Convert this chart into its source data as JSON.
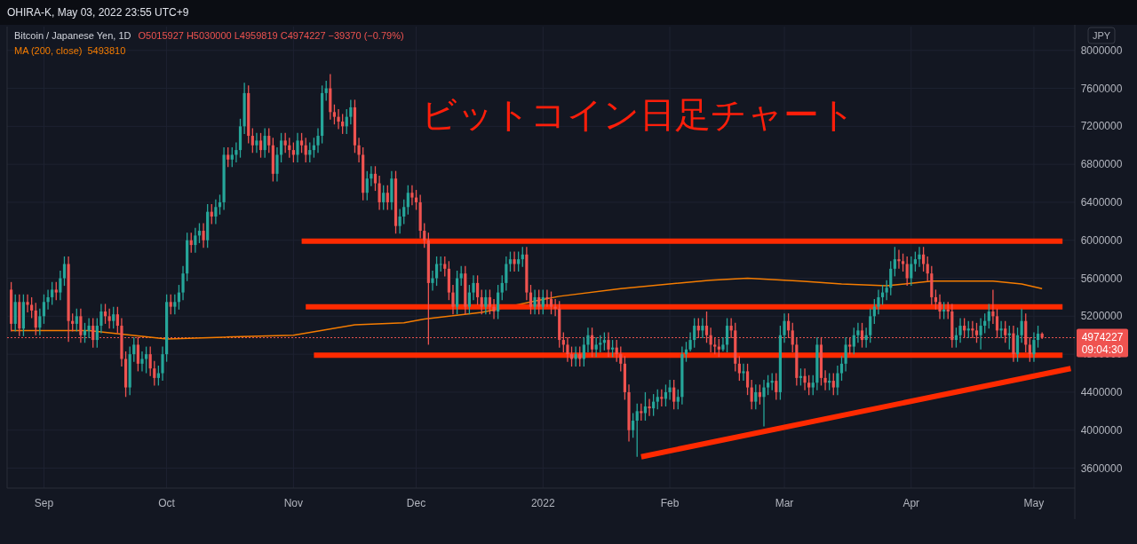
{
  "chart_data": {
    "type": "candlestick",
    "title": "Bitcoin / Japanese Yen, 1D",
    "ylabel": "JPY",
    "annotations": [
      "OHIRA-K, May 03, 2022 23:55 UTC+9",
      "O5015927 H5030000 L4959819 C4974227 −39370 (−0.79%)",
      "ビットコイン日足チャート",
      "09:04:30",
      "5493810"
    ],
    "xlim": [
      "2021-08-23",
      "2022-05-11"
    ],
    "xticks": [
      {
        "value": "2021-09-01",
        "label": "Sep"
      },
      {
        "value": "2021-10-01",
        "label": "Oct"
      },
      {
        "value": "2021-11-01",
        "label": "Nov"
      },
      {
        "value": "2021-12-01",
        "label": "Dec"
      },
      {
        "value": "2022-01-01",
        "label": "2022"
      },
      {
        "value": "2022-02-01",
        "label": "Feb"
      },
      {
        "value": "2022-03-01",
        "label": "Mar"
      },
      {
        "value": "2022-04-01",
        "label": "Apr"
      },
      {
        "value": "2022-05-01",
        "label": "May"
      }
    ],
    "ylim": [
      3390000,
      8250000
    ],
    "yticks": [
      3600000,
      4000000,
      4400000,
      4800000,
      5200000,
      5600000,
      6000000,
      6400000,
      6800000,
      7200000,
      7600000,
      8000000
    ],
    "grid": true,
    "legend": "top left",
    "ref_lines": [
      {
        "axis": "y",
        "value": 4974227,
        "label": "4974227",
        "color": "#ef5350",
        "line_style": "dotted"
      }
    ],
    "x": [
      "2021-08-24",
      "2021-08-25",
      "2021-08-26",
      "2021-08-27",
      "2021-08-28",
      "2021-08-29",
      "2021-08-30",
      "2021-08-31",
      "2021-09-01",
      "2021-09-02",
      "2021-09-03",
      "2021-09-04",
      "2021-09-05",
      "2021-09-06",
      "2021-09-07",
      "2021-09-08",
      "2021-09-09",
      "2021-09-10",
      "2021-09-11",
      "2021-09-12",
      "2021-09-13",
      "2021-09-14",
      "2021-09-15",
      "2021-09-16",
      "2021-09-17",
      "2021-09-18",
      "2021-09-19",
      "2021-09-20",
      "2021-09-21",
      "2021-09-22",
      "2021-09-23",
      "2021-09-24",
      "2021-09-25",
      "2021-09-26",
      "2021-09-27",
      "2021-09-28",
      "2021-09-29",
      "2021-09-30",
      "2021-10-01",
      "2021-10-02",
      "2021-10-03",
      "2021-10-04",
      "2021-10-05",
      "2021-10-06",
      "2021-10-07",
      "2021-10-08",
      "2021-10-09",
      "2021-10-10",
      "2021-10-11",
      "2021-10-12",
      "2021-10-13",
      "2021-10-14",
      "2021-10-15",
      "2021-10-16",
      "2021-10-17",
      "2021-10-18",
      "2021-10-19",
      "2021-10-20",
      "2021-10-21",
      "2021-10-22",
      "2021-10-23",
      "2021-10-24",
      "2021-10-25",
      "2021-10-26",
      "2021-10-27",
      "2021-10-28",
      "2021-10-29",
      "2021-10-30",
      "2021-10-31",
      "2021-11-01",
      "2021-11-02",
      "2021-11-03",
      "2021-11-04",
      "2021-11-05",
      "2021-11-06",
      "2021-11-07",
      "2021-11-08",
      "2021-11-09",
      "2021-11-10",
      "2021-11-11",
      "2021-11-12",
      "2021-11-13",
      "2021-11-14",
      "2021-11-15",
      "2021-11-16",
      "2021-11-17",
      "2021-11-18",
      "2021-11-19",
      "2021-11-20",
      "2021-11-21",
      "2021-11-22",
      "2021-11-23",
      "2021-11-24",
      "2021-11-25",
      "2021-11-26",
      "2021-11-27",
      "2021-11-28",
      "2021-11-29",
      "2021-11-30",
      "2021-12-01",
      "2021-12-02",
      "2021-12-03",
      "2021-12-04",
      "2021-12-05",
      "2021-12-06",
      "2021-12-07",
      "2021-12-08",
      "2021-12-09",
      "2021-12-10",
      "2021-12-11",
      "2021-12-12",
      "2021-12-13",
      "2021-12-14",
      "2021-12-15",
      "2021-12-16",
      "2021-12-17",
      "2021-12-18",
      "2021-12-19",
      "2021-12-20",
      "2021-12-21",
      "2021-12-22",
      "2021-12-23",
      "2021-12-24",
      "2021-12-25",
      "2021-12-26",
      "2021-12-27",
      "2021-12-28",
      "2021-12-29",
      "2021-12-30",
      "2021-12-31",
      "2022-01-01",
      "2022-01-02",
      "2022-01-03",
      "2022-01-04",
      "2022-01-05",
      "2022-01-06",
      "2022-01-07",
      "2022-01-08",
      "2022-01-09",
      "2022-01-10",
      "2022-01-11",
      "2022-01-12",
      "2022-01-13",
      "2022-01-14",
      "2022-01-15",
      "2022-01-16",
      "2022-01-17",
      "2022-01-18",
      "2022-01-19",
      "2022-01-20",
      "2022-01-21",
      "2022-01-22",
      "2022-01-23",
      "2022-01-24",
      "2022-01-25",
      "2022-01-26",
      "2022-01-27",
      "2022-01-28",
      "2022-01-29",
      "2022-01-30",
      "2022-01-31",
      "2022-02-01",
      "2022-02-02",
      "2022-02-03",
      "2022-02-04",
      "2022-02-05",
      "2022-02-06",
      "2022-02-07",
      "2022-02-08",
      "2022-02-09",
      "2022-02-10",
      "2022-02-11",
      "2022-02-12",
      "2022-02-13",
      "2022-02-14",
      "2022-02-15",
      "2022-02-16",
      "2022-02-17",
      "2022-02-18",
      "2022-02-19",
      "2022-02-20",
      "2022-02-21",
      "2022-02-22",
      "2022-02-23",
      "2022-02-24",
      "2022-02-25",
      "2022-02-26",
      "2022-02-27",
      "2022-02-28",
      "2022-03-01",
      "2022-03-02",
      "2022-03-03",
      "2022-03-04",
      "2022-03-05",
      "2022-03-06",
      "2022-03-07",
      "2022-03-08",
      "2022-03-09",
      "2022-03-10",
      "2022-03-11",
      "2022-03-12",
      "2022-03-13",
      "2022-03-14",
      "2022-03-15",
      "2022-03-16",
      "2022-03-17",
      "2022-03-18",
      "2022-03-19",
      "2022-03-20",
      "2022-03-21",
      "2022-03-22",
      "2022-03-23",
      "2022-03-24",
      "2022-03-25",
      "2022-03-26",
      "2022-03-27",
      "2022-03-28",
      "2022-03-29",
      "2022-03-30",
      "2022-03-31",
      "2022-04-01",
      "2022-04-02",
      "2022-04-03",
      "2022-04-04",
      "2022-04-05",
      "2022-04-06",
      "2022-04-07",
      "2022-04-08",
      "2022-04-09",
      "2022-04-10",
      "2022-04-11",
      "2022-04-12",
      "2022-04-13",
      "2022-04-14",
      "2022-04-15",
      "2022-04-16",
      "2022-04-17",
      "2022-04-18",
      "2022-04-19",
      "2022-04-20",
      "2022-04-21",
      "2022-04-22",
      "2022-04-23",
      "2022-04-24",
      "2022-04-25",
      "2022-04-26",
      "2022-04-27",
      "2022-04-28",
      "2022-04-29",
      "2022-04-30",
      "2022-05-01",
      "2022-05-02",
      "2022-05-03"
    ],
    "ohlc": [
      [
        5480000,
        5560000,
        5040000,
        5120000
      ],
      [
        5120000,
        5430000,
        5040000,
        5350000
      ],
      [
        5350000,
        5430000,
        4990000,
        5070000
      ],
      [
        5070000,
        5430000,
        4990000,
        5350000
      ],
      [
        5350000,
        5430000,
        5240000,
        5320000
      ],
      [
        5320000,
        5400000,
        5180000,
        5260000
      ],
      [
        5260000,
        5340000,
        5000000,
        5080000
      ],
      [
        5080000,
        5280000,
        5000000,
        5200000
      ],
      [
        5200000,
        5430000,
        5120000,
        5350000
      ],
      [
        5350000,
        5480000,
        5270000,
        5400000
      ],
      [
        5400000,
        5560000,
        5320000,
        5480000
      ],
      [
        5480000,
        5560000,
        5370000,
        5450000
      ],
      [
        5450000,
        5680000,
        5370000,
        5600000
      ],
      [
        5600000,
        5830000,
        5520000,
        5750000
      ],
      [
        5750000,
        5830000,
        4930000,
        5150000
      ],
      [
        5150000,
        5230000,
        5040000,
        5120000
      ],
      [
        5120000,
        5280000,
        5040000,
        5200000
      ],
      [
        5200000,
        5280000,
        4920000,
        5000000
      ],
      [
        5000000,
        5130000,
        4920000,
        5050000
      ],
      [
        5050000,
        5180000,
        4970000,
        5100000
      ],
      [
        5100000,
        5180000,
        4870000,
        4950000
      ],
      [
        4950000,
        5180000,
        4870000,
        5100000
      ],
      [
        5100000,
        5330000,
        5020000,
        5250000
      ],
      [
        5250000,
        5330000,
        5120000,
        5200000
      ],
      [
        5200000,
        5280000,
        5070000,
        5150000
      ],
      [
        5150000,
        5300000,
        5070000,
        5220000
      ],
      [
        5220000,
        5300000,
        5020000,
        5100000
      ],
      [
        5100000,
        5180000,
        4670000,
        4750000
      ],
      [
        4750000,
        4830000,
        4350000,
        4450000
      ],
      [
        4450000,
        4880000,
        4370000,
        4800000
      ],
      [
        4800000,
        4980000,
        4720000,
        4900000
      ],
      [
        4900000,
        4980000,
        4620000,
        4700000
      ],
      [
        4700000,
        4830000,
        4620000,
        4750000
      ],
      [
        4750000,
        4880000,
        4600000,
        4800000
      ],
      [
        4800000,
        4880000,
        4570000,
        4650000
      ],
      [
        4650000,
        4730000,
        4470000,
        4550000
      ],
      [
        4550000,
        4680000,
        4470000,
        4600000
      ],
      [
        4600000,
        4880000,
        4520000,
        4800000
      ],
      [
        4800000,
        5430000,
        4720000,
        5350000
      ],
      [
        5350000,
        5430000,
        5220000,
        5300000
      ],
      [
        5300000,
        5430000,
        5220000,
        5350000
      ],
      [
        5350000,
        5530000,
        5270000,
        5450000
      ],
      [
        5450000,
        5730000,
        5370000,
        5650000
      ],
      [
        5650000,
        6080000,
        5570000,
        6000000
      ],
      [
        6000000,
        6080000,
        5870000,
        5950000
      ],
      [
        5950000,
        6130000,
        5870000,
        6050000
      ],
      [
        6050000,
        6180000,
        5970000,
        6100000
      ],
      [
        6100000,
        6180000,
        5920000,
        6000000
      ],
      [
        6000000,
        6380000,
        5920000,
        6300000
      ],
      [
        6300000,
        6380000,
        6170000,
        6250000
      ],
      [
        6250000,
        6430000,
        6170000,
        6350000
      ],
      [
        6350000,
        6480000,
        6270000,
        6400000
      ],
      [
        6400000,
        6980000,
        6320000,
        6900000
      ],
      [
        6900000,
        6980000,
        6770000,
        6850000
      ],
      [
        6850000,
        6980000,
        6770000,
        6900000
      ],
      [
        6900000,
        7030000,
        6820000,
        6950000
      ],
      [
        6950000,
        7280000,
        6870000,
        7200000
      ],
      [
        7200000,
        7660000,
        7120000,
        7550000
      ],
      [
        7550000,
        7630000,
        7020000,
        7100000
      ],
      [
        7100000,
        7180000,
        6920000,
        7000000
      ],
      [
        7000000,
        7130000,
        6920000,
        7050000
      ],
      [
        7050000,
        7130000,
        6870000,
        6950000
      ],
      [
        6950000,
        7180000,
        6870000,
        7100000
      ],
      [
        7100000,
        7180000,
        6920000,
        7000000
      ],
      [
        7000000,
        7080000,
        6620000,
        6700000
      ],
      [
        6700000,
        6980000,
        6620000,
        6900000
      ],
      [
        6900000,
        7130000,
        6820000,
        7050000
      ],
      [
        7050000,
        7130000,
        6920000,
        7000000
      ],
      [
        7000000,
        7080000,
        6870000,
        6950000
      ],
      [
        6950000,
        7030000,
        6820000,
        6900000
      ],
      [
        6900000,
        7130000,
        6820000,
        7050000
      ],
      [
        7050000,
        7130000,
        6920000,
        7000000
      ],
      [
        7000000,
        7080000,
        6820000,
        6900000
      ],
      [
        6900000,
        7030000,
        6820000,
        6950000
      ],
      [
        6950000,
        7080000,
        6870000,
        7000000
      ],
      [
        7000000,
        7180000,
        6920000,
        7100000
      ],
      [
        7100000,
        7630000,
        7020000,
        7550000
      ],
      [
        7550000,
        7680000,
        7470000,
        7600000
      ],
      [
        7600000,
        7750000,
        7270000,
        7350000
      ],
      [
        7350000,
        7430000,
        7220000,
        7300000
      ],
      [
        7300000,
        7380000,
        7170000,
        7250000
      ],
      [
        7250000,
        7330000,
        7120000,
        7200000
      ],
      [
        7200000,
        7380000,
        7120000,
        7300000
      ],
      [
        7300000,
        7480000,
        7220000,
        7400000
      ],
      [
        7400000,
        7480000,
        6920000,
        7000000
      ],
      [
        7000000,
        7080000,
        6820000,
        6900000
      ],
      [
        6900000,
        6980000,
        6420000,
        6500000
      ],
      [
        6500000,
        6730000,
        6420000,
        6650000
      ],
      [
        6650000,
        6780000,
        6570000,
        6700000
      ],
      [
        6700000,
        6780000,
        6520000,
        6600000
      ],
      [
        6600000,
        6680000,
        6320000,
        6400000
      ],
      [
        6400000,
        6580000,
        6320000,
        6500000
      ],
      [
        6500000,
        6580000,
        6320000,
        6400000
      ],
      [
        6400000,
        6730000,
        6320000,
        6650000
      ],
      [
        6650000,
        6730000,
        6070000,
        6150000
      ],
      [
        6150000,
        6330000,
        6070000,
        6250000
      ],
      [
        6250000,
        6430000,
        6170000,
        6350000
      ],
      [
        6350000,
        6580000,
        6270000,
        6500000
      ],
      [
        6500000,
        6580000,
        6370000,
        6450000
      ],
      [
        6450000,
        6530000,
        6320000,
        6400000
      ],
      [
        6400000,
        6480000,
        6020000,
        6100000
      ],
      [
        6100000,
        6180000,
        5920000,
        6000000
      ],
      [
        6000000,
        6080000,
        4900000,
        5550000
      ],
      [
        5550000,
        5680000,
        5470000,
        5600000
      ],
      [
        5600000,
        5830000,
        5520000,
        5750000
      ],
      [
        5750000,
        5830000,
        5670000,
        5750000
      ],
      [
        5750000,
        5830000,
        5620000,
        5700000
      ],
      [
        5700000,
        5780000,
        5370000,
        5450000
      ],
      [
        5450000,
        5530000,
        5220000,
        5300000
      ],
      [
        5300000,
        5680000,
        5220000,
        5600000
      ],
      [
        5600000,
        5730000,
        5520000,
        5650000
      ],
      [
        5650000,
        5730000,
        5220000,
        5300000
      ],
      [
        5300000,
        5530000,
        5220000,
        5450000
      ],
      [
        5450000,
        5630000,
        5370000,
        5550000
      ],
      [
        5550000,
        5630000,
        5320000,
        5400000
      ],
      [
        5400000,
        5480000,
        5220000,
        5300000
      ],
      [
        5300000,
        5480000,
        5220000,
        5400000
      ],
      [
        5400000,
        5480000,
        5220000,
        5300000
      ],
      [
        5300000,
        5380000,
        5170000,
        5250000
      ],
      [
        5250000,
        5530000,
        5170000,
        5450000
      ],
      [
        5450000,
        5630000,
        5370000,
        5550000
      ],
      [
        5550000,
        5830000,
        5470000,
        5750000
      ],
      [
        5750000,
        5880000,
        5670000,
        5800000
      ],
      [
        5800000,
        5880000,
        5670000,
        5750000
      ],
      [
        5750000,
        5880000,
        5670000,
        5800000
      ],
      [
        5800000,
        5930000,
        5720000,
        5850000
      ],
      [
        5850000,
        5930000,
        5370000,
        5450000
      ],
      [
        5450000,
        5530000,
        5220000,
        5300000
      ],
      [
        5300000,
        5480000,
        5220000,
        5400000
      ],
      [
        5400000,
        5480000,
        5220000,
        5300000
      ],
      [
        5300000,
        5480000,
        5220000,
        5400000
      ],
      [
        5400000,
        5480000,
        5300000,
        5380000
      ],
      [
        5380000,
        5460000,
        5220000,
        5300000
      ],
      [
        5300000,
        5380000,
        5200000,
        5280000
      ],
      [
        5280000,
        5360000,
        4870000,
        4950000
      ],
      [
        4950000,
        5030000,
        4820000,
        4900000
      ],
      [
        4900000,
        4980000,
        4720000,
        4800000
      ],
      [
        4800000,
        4880000,
        4670000,
        4750000
      ],
      [
        4750000,
        4880000,
        4670000,
        4800000
      ],
      [
        4800000,
        4880000,
        4670000,
        4750000
      ],
      [
        4750000,
        4980000,
        4670000,
        4900000
      ],
      [
        4900000,
        5080000,
        4820000,
        5000000
      ],
      [
        5000000,
        5080000,
        4770000,
        4850000
      ],
      [
        4850000,
        4980000,
        4770000,
        4900000
      ],
      [
        4900000,
        5000000,
        4820000,
        4920000
      ],
      [
        4920000,
        5030000,
        4840000,
        4950000
      ],
      [
        4950000,
        5030000,
        4770000,
        4850000
      ],
      [
        4850000,
        4950000,
        4770000,
        4870000
      ],
      [
        4870000,
        4950000,
        4720000,
        4800000
      ],
      [
        4800000,
        4880000,
        4620000,
        4700000
      ],
      [
        4700000,
        4780000,
        4320000,
        4400000
      ],
      [
        4400000,
        4480000,
        3880000,
        4000000
      ],
      [
        4000000,
        4180000,
        3920000,
        4100000
      ],
      [
        4100000,
        4280000,
        3720000,
        4200000
      ],
      [
        4200000,
        4280000,
        4100000,
        4180000
      ],
      [
        4180000,
        4400000,
        4100000,
        4250000
      ],
      [
        4250000,
        4330000,
        4150000,
        4230000
      ],
      [
        4230000,
        4380000,
        4150000,
        4300000
      ],
      [
        4300000,
        4430000,
        4220000,
        4350000
      ],
      [
        4350000,
        4430000,
        4250000,
        4330000
      ],
      [
        4330000,
        4480000,
        4250000,
        4400000
      ],
      [
        4400000,
        4530000,
        4320000,
        4450000
      ],
      [
        4450000,
        4530000,
        4220000,
        4300000
      ],
      [
        4300000,
        4430000,
        4220000,
        4350000
      ],
      [
        4350000,
        4880000,
        4270000,
        4800000
      ],
      [
        4800000,
        4930000,
        4720000,
        4850000
      ],
      [
        4850000,
        5030000,
        4830000,
        4950000
      ],
      [
        4950000,
        5180000,
        4870000,
        5100000
      ],
      [
        5100000,
        5180000,
        4970000,
        5050000
      ],
      [
        5050000,
        5180000,
        4970000,
        5100000
      ],
      [
        5100000,
        5250000,
        4920000,
        5000000
      ],
      [
        5000000,
        5080000,
        4820000,
        4900000
      ],
      [
        4900000,
        4980000,
        4800000,
        4880000
      ],
      [
        4880000,
        4960000,
        4770000,
        4850000
      ],
      [
        4850000,
        4980000,
        4830000,
        4900000
      ],
      [
        4900000,
        5180000,
        4820000,
        5100000
      ],
      [
        5100000,
        5180000,
        4970000,
        5050000
      ],
      [
        5050000,
        5130000,
        4620000,
        4700000
      ],
      [
        4700000,
        4780000,
        4520000,
        4600000
      ],
      [
        4600000,
        4700000,
        4520000,
        4620000
      ],
      [
        4620000,
        4700000,
        4370000,
        4450000
      ],
      [
        4450000,
        4530000,
        4220000,
        4300000
      ],
      [
        4300000,
        4480000,
        4220000,
        4400000
      ],
      [
        4400000,
        4480000,
        4270000,
        4350000
      ],
      [
        4350000,
        4530000,
        4040000,
        4450000
      ],
      [
        4450000,
        4580000,
        4370000,
        4500000
      ],
      [
        4500000,
        4600000,
        4420000,
        4520000
      ],
      [
        4520000,
        4600000,
        4320000,
        4400000
      ],
      [
        4400000,
        5100000,
        4320000,
        5000000
      ],
      [
        5000000,
        5230000,
        4920000,
        5150000
      ],
      [
        5150000,
        5230000,
        4970000,
        5050000
      ],
      [
        5050000,
        5130000,
        4820000,
        4900000
      ],
      [
        4900000,
        4980000,
        4470000,
        4550000
      ],
      [
        4550000,
        4650000,
        4470000,
        4570000
      ],
      [
        4570000,
        4650000,
        4420000,
        4500000
      ],
      [
        4500000,
        4580000,
        4370000,
        4450000
      ],
      [
        4450000,
        4580000,
        4370000,
        4500000
      ],
      [
        4500000,
        4980000,
        4420000,
        4900000
      ],
      [
        4900000,
        4980000,
        4470000,
        4550000
      ],
      [
        4550000,
        4630000,
        4420000,
        4500000
      ],
      [
        4500000,
        4600000,
        4420000,
        4520000
      ],
      [
        4520000,
        4600000,
        4370000,
        4450000
      ],
      [
        4450000,
        4680000,
        4370000,
        4600000
      ],
      [
        4600000,
        4780000,
        4520000,
        4700000
      ],
      [
        4700000,
        4980000,
        4620000,
        4900000
      ],
      [
        4900000,
        4980000,
        4800000,
        4880000
      ],
      [
        4880000,
        5080000,
        4800000,
        5000000
      ],
      [
        5000000,
        5130000,
        4920000,
        5050000
      ],
      [
        5050000,
        5130000,
        4870000,
        4950000
      ],
      [
        4950000,
        5080000,
        4870000,
        5000000
      ],
      [
        5000000,
        5280000,
        4920000,
        5200000
      ],
      [
        5200000,
        5380000,
        5120000,
        5300000
      ],
      [
        5300000,
        5480000,
        5220000,
        5400000
      ],
      [
        5400000,
        5530000,
        5320000,
        5450000
      ],
      [
        5450000,
        5580000,
        5370000,
        5500000
      ],
      [
        5500000,
        5780000,
        5420000,
        5700000
      ],
      [
        5700000,
        5930000,
        5620000,
        5800000
      ],
      [
        5800000,
        5900000,
        5700000,
        5780000
      ],
      [
        5780000,
        5860000,
        5670000,
        5750000
      ],
      [
        5750000,
        5830000,
        5520000,
        5600000
      ],
      [
        5600000,
        5830000,
        5520000,
        5750000
      ],
      [
        5750000,
        5880000,
        5670000,
        5800000
      ],
      [
        5800000,
        5930000,
        5720000,
        5850000
      ],
      [
        5850000,
        5930000,
        5670000,
        5750000
      ],
      [
        5750000,
        5830000,
        5570000,
        5650000
      ],
      [
        5650000,
        5730000,
        5320000,
        5400000
      ],
      [
        5400000,
        5480000,
        5270000,
        5350000
      ],
      [
        5350000,
        5430000,
        5170000,
        5250000
      ],
      [
        5250000,
        5350000,
        5170000,
        5270000
      ],
      [
        5270000,
        5350000,
        5170000,
        5250000
      ],
      [
        5250000,
        5330000,
        4870000,
        4950000
      ],
      [
        4950000,
        5080000,
        4870000,
        5000000
      ],
      [
        5000000,
        5180000,
        4920000,
        5100000
      ],
      [
        5100000,
        5180000,
        4970000,
        5050000
      ],
      [
        5050000,
        5150000,
        4970000,
        5070000
      ],
      [
        5070000,
        5150000,
        4970000,
        5050000
      ],
      [
        5050000,
        5130000,
        4920000,
        5000000
      ],
      [
        5000000,
        5180000,
        4850000,
        5100000
      ],
      [
        5100000,
        5230000,
        5020000,
        5150000
      ],
      [
        5150000,
        5330000,
        5070000,
        5250000
      ],
      [
        5250000,
        5480000,
        5120000,
        5200000
      ],
      [
        5200000,
        5280000,
        4970000,
        5050000
      ],
      [
        5050000,
        5150000,
        4970000,
        5070000
      ],
      [
        5070000,
        5150000,
        4920000,
        5000000
      ],
      [
        5000000,
        5100000,
        4850000,
        5020000
      ],
      [
        5020000,
        5100000,
        4720000,
        4800000
      ],
      [
        4800000,
        5080000,
        4720000,
        5000000
      ],
      [
        5000000,
        5280000,
        4920000,
        5150000
      ],
      [
        5150000,
        5230000,
        4820000,
        4900000
      ],
      [
        4900000,
        4980000,
        4720000,
        4800000
      ],
      [
        4800000,
        5030000,
        4720000,
        4950000
      ],
      [
        4950000,
        5100000,
        4870000,
        5015927
      ],
      [
        5015927,
        5030000,
        4959819,
        4974227
      ]
    ],
    "series": [
      {
        "type": "line",
        "name": "MA (200, close)",
        "color": "#f57c00",
        "x": [
          "2021-08-24",
          "2021-09-12",
          "2021-10-01",
          "2021-10-15",
          "2021-11-01",
          "2021-11-16",
          "2021-11-28",
          "2021-12-03",
          "2021-12-17",
          "2021-12-30",
          "2022-01-05",
          "2022-01-20",
          "2022-02-11",
          "2022-02-20",
          "2022-03-05",
          "2022-03-15",
          "2022-03-26",
          "2022-04-06",
          "2022-04-21",
          "2022-04-28",
          "2022-05-03"
        ],
        "values": [
          5050000,
          5050000,
          4960000,
          4980000,
          5000000,
          5110000,
          5130000,
          5170000,
          5240000,
          5360000,
          5410000,
          5490000,
          5580000,
          5600000,
          5570000,
          5540000,
          5520000,
          5570000,
          5570000,
          5540000,
          5490000
        ]
      },
      {
        "type": "line",
        "color": "#ff2a00",
        "x": [
          "2021-11-03",
          "2022-05-08"
        ],
        "values": [
          5990000,
          5990000
        ]
      },
      {
        "type": "line",
        "color": "#ff2a00",
        "x": [
          "2021-11-04",
          "2022-05-08"
        ],
        "values": [
          5300000,
          5300000
        ]
      },
      {
        "type": "line",
        "color": "#ff2a00",
        "x": [
          "2021-11-06",
          "2022-05-08"
        ],
        "values": [
          4790000,
          4790000
        ]
      },
      {
        "type": "line",
        "color": "#ff2a00",
        "x": [
          "2022-01-25",
          "2022-05-10"
        ],
        "values": [
          3720000,
          4650000
        ]
      }
    ]
  }
}
